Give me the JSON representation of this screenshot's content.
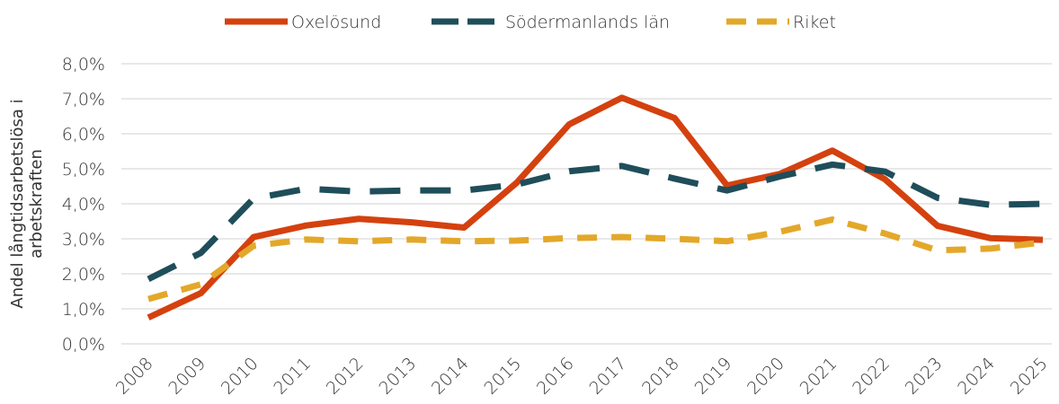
{
  "chart_data": {
    "type": "line",
    "y_label": "Andel långtidsarbetslösa i arbetskraften",
    "categories": [
      "2008",
      "2009",
      "2010",
      "2011",
      "2012",
      "2013",
      "2014",
      "2015",
      "2016",
      "2017",
      "2018",
      "2019",
      "2020",
      "2021",
      "2022",
      "2023",
      "2024",
      "2025"
    ],
    "series": [
      {
        "name": "Oxelösund",
        "color": "#d4410f",
        "dash": "solid",
        "values": [
          0.75,
          1.45,
          3.05,
          3.38,
          3.57,
          3.47,
          3.32,
          4.6,
          6.27,
          7.03,
          6.45,
          4.52,
          4.85,
          5.52,
          4.7,
          3.37,
          3.02,
          2.97
        ]
      },
      {
        "name": "Södermanlands län",
        "color": "#1f4e5a",
        "dash": "long",
        "values": [
          1.85,
          2.6,
          4.15,
          4.43,
          4.35,
          4.38,
          4.38,
          4.55,
          4.93,
          5.08,
          4.72,
          4.38,
          4.78,
          5.12,
          4.92,
          4.17,
          3.97,
          4.0
        ]
      },
      {
        "name": "Riket",
        "color": "#e3a82a",
        "dash": "short",
        "values": [
          1.28,
          1.7,
          2.8,
          2.98,
          2.93,
          2.98,
          2.93,
          2.95,
          3.02,
          3.05,
          3.0,
          2.93,
          3.2,
          3.55,
          3.15,
          2.67,
          2.72,
          2.9
        ]
      }
    ],
    "ylim": [
      0,
      8
    ],
    "yticks": [
      {
        "value": 0,
        "label": "0,0%"
      },
      {
        "value": 1,
        "label": "1,0%"
      },
      {
        "value": 2,
        "label": "2,0%"
      },
      {
        "value": 3,
        "label": "3,0%"
      },
      {
        "value": 4,
        "label": "4,0%"
      },
      {
        "value": 5,
        "label": "5,0%"
      },
      {
        "value": 6,
        "label": "6,0%"
      },
      {
        "value": 7,
        "label": "7,0%"
      },
      {
        "value": 8,
        "label": "8,0%"
      }
    ],
    "grid": true,
    "legend": "top"
  }
}
